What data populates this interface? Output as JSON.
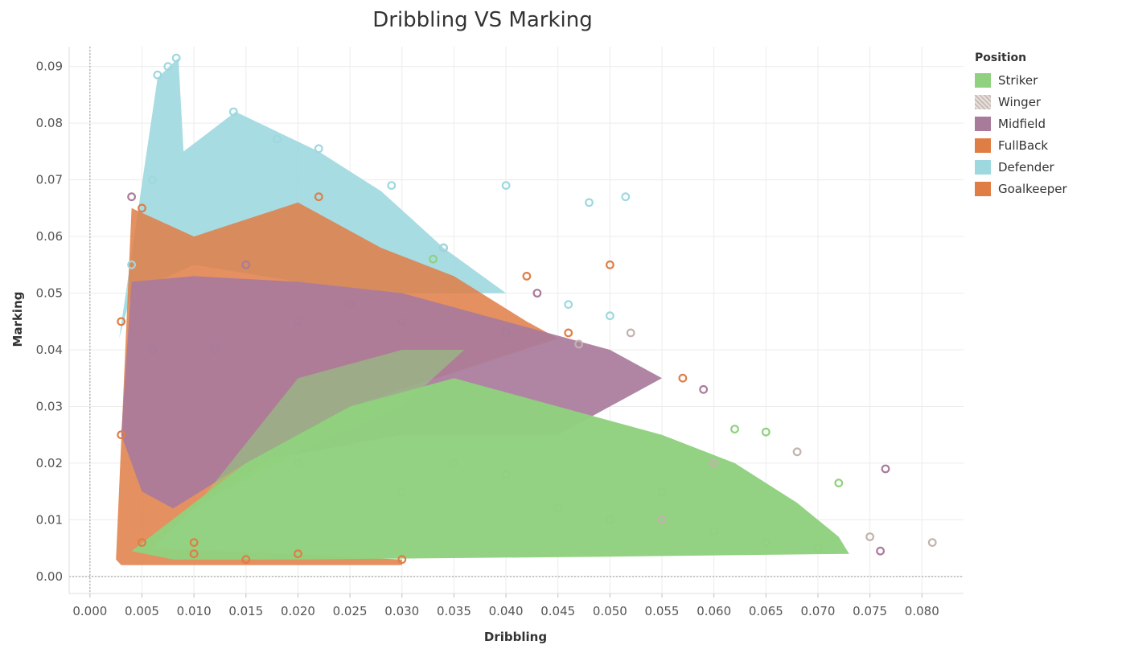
{
  "chart_data": {
    "type": "scatter",
    "title": "Dribbling VS Marking",
    "xlabel": "Dribbling",
    "ylabel": "Marking",
    "xlim": [
      -0.002,
      0.084
    ],
    "ylim": [
      -0.003,
      0.0935
    ],
    "x_ticks": [
      "0.000",
      "0.005",
      "0.010",
      "0.015",
      "0.020",
      "0.025",
      "0.030",
      "0.035",
      "0.040",
      "0.045",
      "0.050",
      "0.055",
      "0.060",
      "0.065",
      "0.070",
      "0.075",
      "0.080"
    ],
    "y_ticks": [
      "0.00",
      "0.01",
      "0.02",
      "0.03",
      "0.04",
      "0.05",
      "0.06",
      "0.07",
      "0.08",
      "0.09"
    ],
    "grid": true,
    "legend_title": "Position",
    "legend_placement": "right",
    "series": [
      {
        "name": "Striker",
        "color": "#8fd17e",
        "points": [
          [
            0.03,
            0.015
          ],
          [
            0.035,
            0.02
          ],
          [
            0.04,
            0.018
          ],
          [
            0.045,
            0.012
          ],
          [
            0.05,
            0.01
          ],
          [
            0.055,
            0.015
          ],
          [
            0.06,
            0.008
          ],
          [
            0.065,
            0.006
          ],
          [
            0.07,
            0.005
          ],
          [
            0.072,
            0.0165
          ],
          [
            0.065,
            0.0255
          ],
          [
            0.062,
            0.026
          ],
          [
            0.038,
            0.03
          ],
          [
            0.033,
            0.056
          ],
          [
            0.025,
            0.025
          ],
          [
            0.02,
            0.02
          ],
          [
            0.015,
            0.018
          ]
        ]
      },
      {
        "name": "Winger",
        "color": "#c2b3ad",
        "points": [
          [
            0.081,
            0.006
          ],
          [
            0.075,
            0.007
          ],
          [
            0.068,
            0.022
          ],
          [
            0.052,
            0.043
          ],
          [
            0.047,
            0.041
          ],
          [
            0.06,
            0.02
          ],
          [
            0.055,
            0.01
          ]
        ]
      },
      {
        "name": "Midfield",
        "color": "#a97b9b",
        "points": [
          [
            0.0765,
            0.019
          ],
          [
            0.076,
            0.0045
          ],
          [
            0.059,
            0.033
          ],
          [
            0.043,
            0.05
          ],
          [
            0.04,
            0.043
          ],
          [
            0.02,
            0.045
          ],
          [
            0.012,
            0.04
          ],
          [
            0.006,
            0.04
          ],
          [
            0.004,
            0.067
          ],
          [
            0.015,
            0.055
          ],
          [
            0.025,
            0.048
          ],
          [
            0.03,
            0.045
          ]
        ]
      },
      {
        "name": "FullBack",
        "color": "#e07d45",
        "points": [
          [
            0.05,
            0.055
          ],
          [
            0.057,
            0.035
          ],
          [
            0.042,
            0.053
          ],
          [
            0.034,
            0.058
          ],
          [
            0.022,
            0.067
          ],
          [
            0.005,
            0.065
          ],
          [
            0.003,
            0.045
          ],
          [
            0.003,
            0.025
          ],
          [
            0.01,
            0.006
          ],
          [
            0.02,
            0.004
          ],
          [
            0.03,
            0.003
          ],
          [
            0.046,
            0.043
          ]
        ]
      },
      {
        "name": "Defender",
        "color": "#9dd8df",
        "points": [
          [
            0.0083,
            0.0915
          ],
          [
            0.0075,
            0.09
          ],
          [
            0.0065,
            0.0885
          ],
          [
            0.0138,
            0.082
          ],
          [
            0.018,
            0.0772
          ],
          [
            0.022,
            0.0755
          ],
          [
            0.029,
            0.069
          ],
          [
            0.04,
            0.069
          ],
          [
            0.048,
            0.066
          ],
          [
            0.0515,
            0.067
          ],
          [
            0.034,
            0.058
          ],
          [
            0.05,
            0.046
          ],
          [
            0.046,
            0.048
          ],
          [
            0.006,
            0.07
          ],
          [
            0.004,
            0.055
          ]
        ]
      },
      {
        "name": "Goalkeeper",
        "color": "#e07d45",
        "points": [
          [
            0.005,
            0.006
          ],
          [
            0.01,
            0.004
          ],
          [
            0.015,
            0.003
          ]
        ]
      }
    ]
  }
}
